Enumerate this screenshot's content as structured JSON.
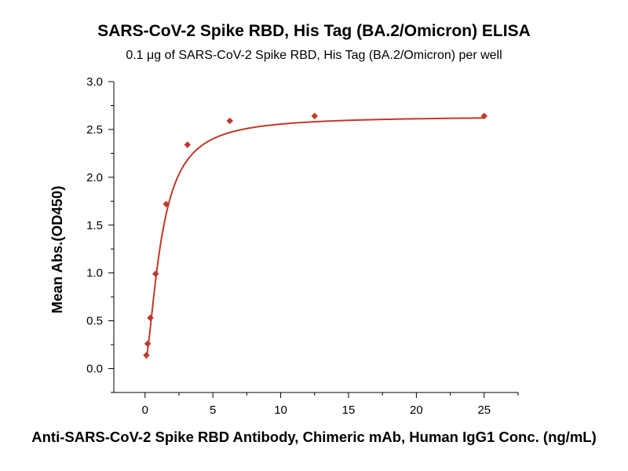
{
  "chart_data": {
    "type": "scatter",
    "title": "SARS-CoV-2 Spike RBD, His Tag (BA.2/Omicron) ELISA",
    "subtitle": "0.1 μg of SARS-CoV-2 Spike RBD, His Tag (BA.2/Omicron) per well",
    "xlabel": "Anti-SARS-CoV-2 Spike RBD Antibody, Chimeric mAb, Human IgG1 Conc. (ng/mL)",
    "ylabel": "Mean Abs.(OD450)",
    "xlim": [
      -2.3,
      27.5
    ],
    "ylim": [
      -0.25,
      3.0
    ],
    "x_ticks": [
      0,
      5,
      10,
      15,
      20,
      25
    ],
    "x_tick_labels": [
      "0",
      "5",
      "10",
      "15",
      "20",
      "25"
    ],
    "y_ticks": [
      0.0,
      0.5,
      1.0,
      1.5,
      2.0,
      2.5,
      3.0
    ],
    "y_tick_labels": [
      "0.0",
      "0.5",
      "1.0",
      "1.5",
      "2.0",
      "2.5",
      "3.0"
    ],
    "grid": false,
    "colors": {
      "series": "#c0392b"
    },
    "series": [
      {
        "marker": "diamond",
        "x": [
          0.098,
          0.195,
          0.39,
          0.78,
          1.56,
          3.13,
          6.25,
          12.5,
          25
        ],
        "y": [
          0.14,
          0.26,
          0.53,
          0.99,
          1.72,
          2.34,
          2.59,
          2.64,
          2.64
        ]
      }
    ],
    "fit_curve": {
      "type": "4PL",
      "bottom": 0.06,
      "top": 2.64,
      "ec50": 1.2,
      "hill": 1.6
    }
  }
}
